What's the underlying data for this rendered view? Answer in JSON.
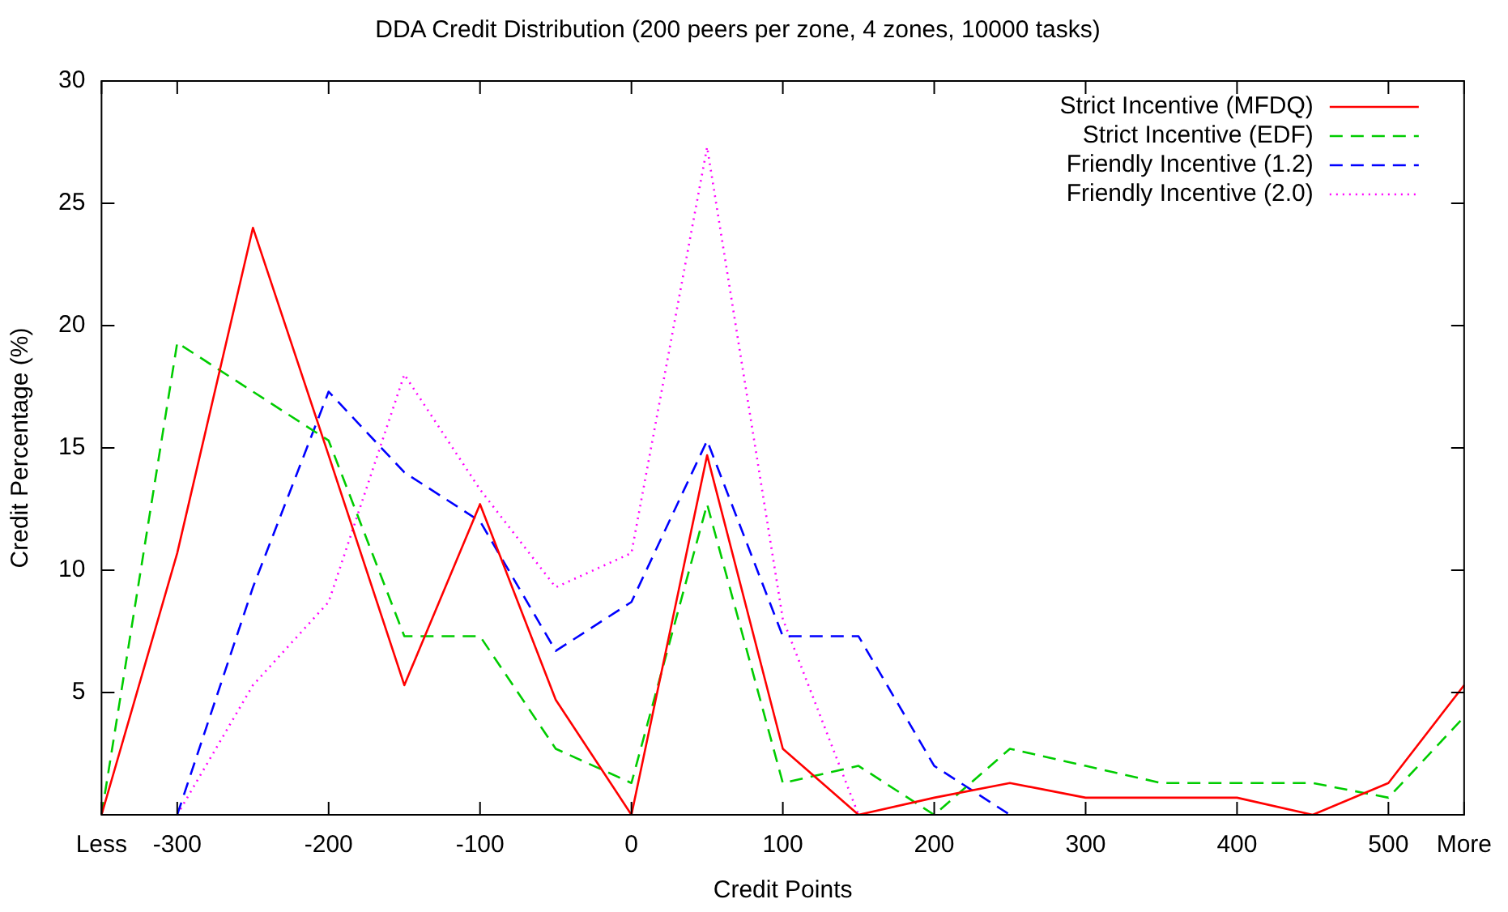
{
  "chart_data": {
    "type": "line",
    "title": "DDA Credit Distribution (200 peers per zone, 4 zones, 10000 tasks)",
    "xlabel": "Credit Points",
    "ylabel": "Credit Percentage (%)",
    "categories": [
      "Less",
      "-300",
      null,
      "-200",
      null,
      "-100",
      null,
      "0",
      null,
      "100",
      null,
      "200",
      null,
      "300",
      null,
      "400",
      null,
      "500",
      "More"
    ],
    "ylim": [
      0,
      30
    ],
    "yticks": [
      5,
      10,
      15,
      20,
      25,
      30
    ],
    "grid": false,
    "legend": "top right",
    "marker": "none",
    "series": [
      {
        "name": "Strict Incentive (MFDQ)",
        "color": "#ff0000",
        "line_style": "solid",
        "values": [
          0,
          10.7,
          24,
          14.7,
          5.3,
          12.7,
          4.7,
          0,
          14.7,
          2.7,
          0,
          0.7,
          1.3,
          0.7,
          0.7,
          0.7,
          0,
          1.3,
          5.3
        ]
      },
      {
        "name": "Strict Incentive (EDF)",
        "color": "#00cc00",
        "line_style": "dashed",
        "values": [
          0,
          19.3,
          17.3,
          15.3,
          7.3,
          7.3,
          2.7,
          1.3,
          12.7,
          1.3,
          2,
          0,
          2.7,
          2,
          1.3,
          1.3,
          1.3,
          0.7,
          4
        ]
      },
      {
        "name": "Friendly Incentive (1.2)",
        "color": "#0000ff",
        "line_style": "dashed",
        "values": [
          null,
          0,
          9.3,
          17.3,
          14,
          12,
          6.7,
          8.7,
          15.3,
          7.3,
          7.3,
          2,
          0,
          null,
          null,
          null,
          null,
          null,
          null
        ]
      },
      {
        "name": "Friendly Incentive (2.0)",
        "color": "#ff00ff",
        "line_style": "dotted",
        "values": [
          null,
          0,
          5.3,
          8.7,
          18,
          13.3,
          9.3,
          10.7,
          27.3,
          8,
          0,
          null,
          null,
          null,
          null,
          null,
          null,
          null,
          null
        ]
      }
    ]
  }
}
